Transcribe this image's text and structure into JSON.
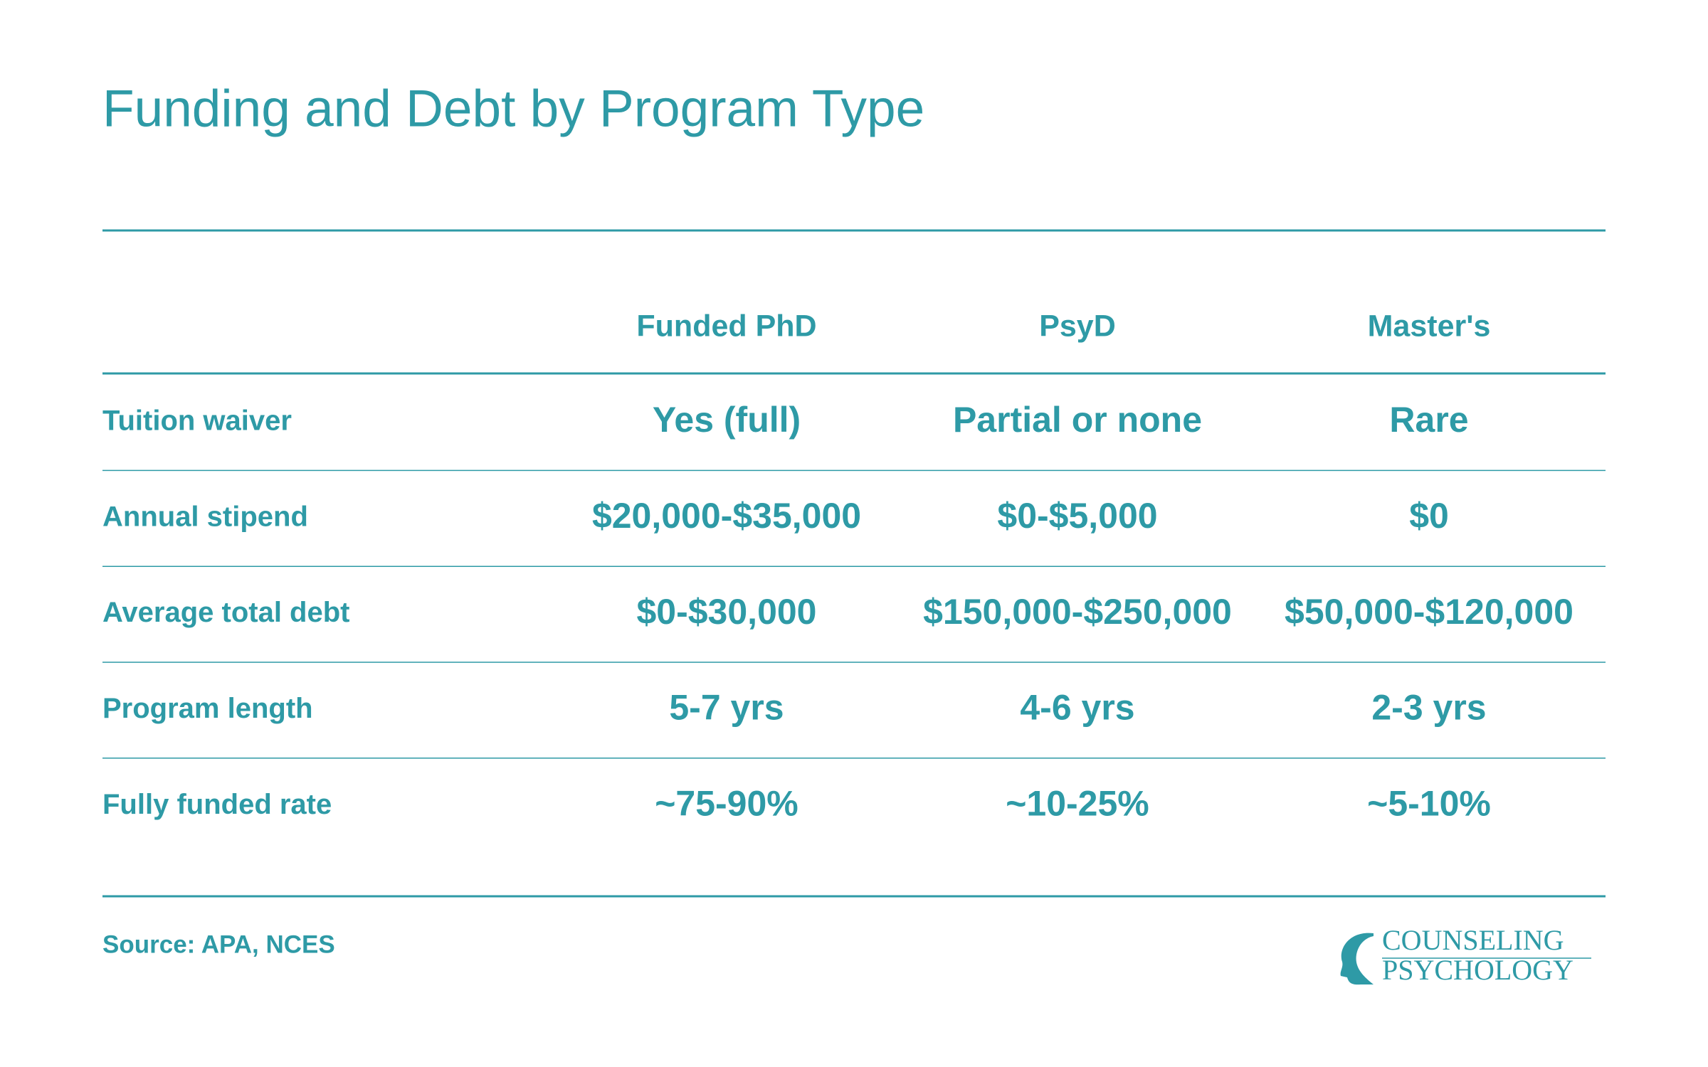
{
  "title": "Funding and Debt by Program Type",
  "table": {
    "columns": [
      "Funded PhD",
      "PsyD",
      "Master's"
    ],
    "rows": [
      {
        "label": "Tuition waiver",
        "cells": [
          "Yes (full)",
          "Partial or none",
          "Rare"
        ]
      },
      {
        "label": "Annual stipend",
        "cells": [
          "$20,000-$35,000",
          "$0-$5,000",
          "$0"
        ]
      },
      {
        "label": "Average total debt",
        "cells": [
          "$0-$30,000",
          "$150,000-$250,000",
          "$50,000-$120,000"
        ]
      },
      {
        "label": "Program length",
        "cells": [
          "5-7 yrs",
          "4-6 yrs",
          "2-3 yrs"
        ]
      },
      {
        "label": "Fully funded rate",
        "cells": [
          "~75-90%",
          "~10-25%",
          "~5-10%"
        ]
      }
    ]
  },
  "source": "Source: APA, NCES",
  "logo": {
    "line1": "COUNSELING",
    "line2": "PSYCHOLOGY"
  }
}
